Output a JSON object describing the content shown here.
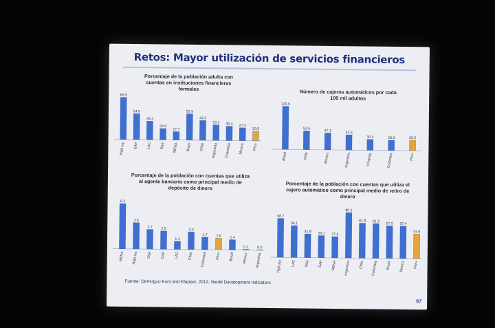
{
  "slide": {
    "title": "Retos: Mayor utilización de servicios financieros",
    "source": "Fuente: Demirguc-Kunt and Klapper, 2012, World Development Indicators",
    "page_number": "67"
  },
  "colors": {
    "bar": "#3f6fd0",
    "bar_highlight": "#e2a63a",
    "title": "#21317a",
    "slide_bg": "#eceef3"
  },
  "chart_data": [
    {
      "type": "bar",
      "title": "Porcentaje de la población adulta con cuentas en instituciones financieras formales",
      "categories": [
        "High Inc",
        "EAP",
        "LAC",
        "SSA",
        "MENA",
        "Brazil",
        "Chile",
        "Argentina",
        "Colombia",
        "Mexico",
        "Peru"
      ],
      "values": [
        89.5,
        54.9,
        39.3,
        24.0,
        17.7,
        55.9,
        42.2,
        33.1,
        30.4,
        27.4,
        20.5
      ],
      "labels": [
        "89.5",
        "54.9",
        "39.3",
        "24.0",
        "17.7",
        "55.9",
        "42.2",
        "33.1",
        "30.4",
        "27.4",
        "20.5"
      ],
      "highlight": [
        10
      ],
      "ylim": [
        0,
        95
      ]
    },
    {
      "type": "bar",
      "title": "Número de cajeros automáticos por cada 100 mil adultos",
      "categories": [
        "Brazil",
        "Chile",
        "Mexico",
        "Argentina",
        "Uruguay",
        "Colombia",
        "Peru"
      ],
      "values": [
        120.6,
        52.5,
        47.1,
        42.5,
        30.4,
        28.6,
        29.2
      ],
      "labels": [
        "120.6",
        "52.5",
        "47.1",
        "42.5",
        "30.4",
        "28.6",
        "29.2"
      ],
      "highlight": [
        6
      ],
      "ylim": [
        0,
        125
      ]
    },
    {
      "type": "bar",
      "title": "Porcentaje de la población con cuentas que utiliza al agente bancario como principal medio de depósito de dinero",
      "categories": [
        "MENA",
        "High Inc",
        "SSA",
        "EAP",
        "LAC",
        "Chile",
        "Colombia",
        "Peru",
        "Brazil",
        "Mexico",
        "Argentina"
      ],
      "values": [
        6.2,
        3.6,
        2.7,
        2.5,
        1.1,
        2.4,
        1.7,
        1.6,
        1.4,
        0.1,
        0.0
      ],
      "labels": [
        "6.2",
        "3.6",
        "2.7",
        "2.5",
        "1.1",
        "2.4",
        "1.7",
        "1.6",
        "1.4",
        "0.1",
        "0.0"
      ],
      "highlight": [
        7
      ],
      "ylim": [
        0,
        6.6
      ]
    },
    {
      "type": "bar",
      "title": "Porcentaje de la población con cuentas que utiliza el cajero automático como principal medio de retiro de dinero",
      "categories": [
        "High Inc",
        "LAC",
        "SSA",
        "EAP",
        "MENA",
        "Argentina",
        "Chile",
        "Colombia",
        "Brazil",
        "Mexico",
        "Peru"
      ],
      "values": [
        68.7,
        56.1,
        41.8,
        39.1,
        37.6,
        80.1,
        61.8,
        61.2,
        57.5,
        57.4,
        43.6
      ],
      "labels": [
        "68.7",
        "56.1",
        "41.8",
        "39.1",
        "37.6",
        "80.1",
        "61.8",
        "61.2",
        "57.5",
        "57.4",
        "43.6"
      ],
      "highlight": [
        10
      ],
      "ylim": [
        0,
        85
      ]
    }
  ]
}
